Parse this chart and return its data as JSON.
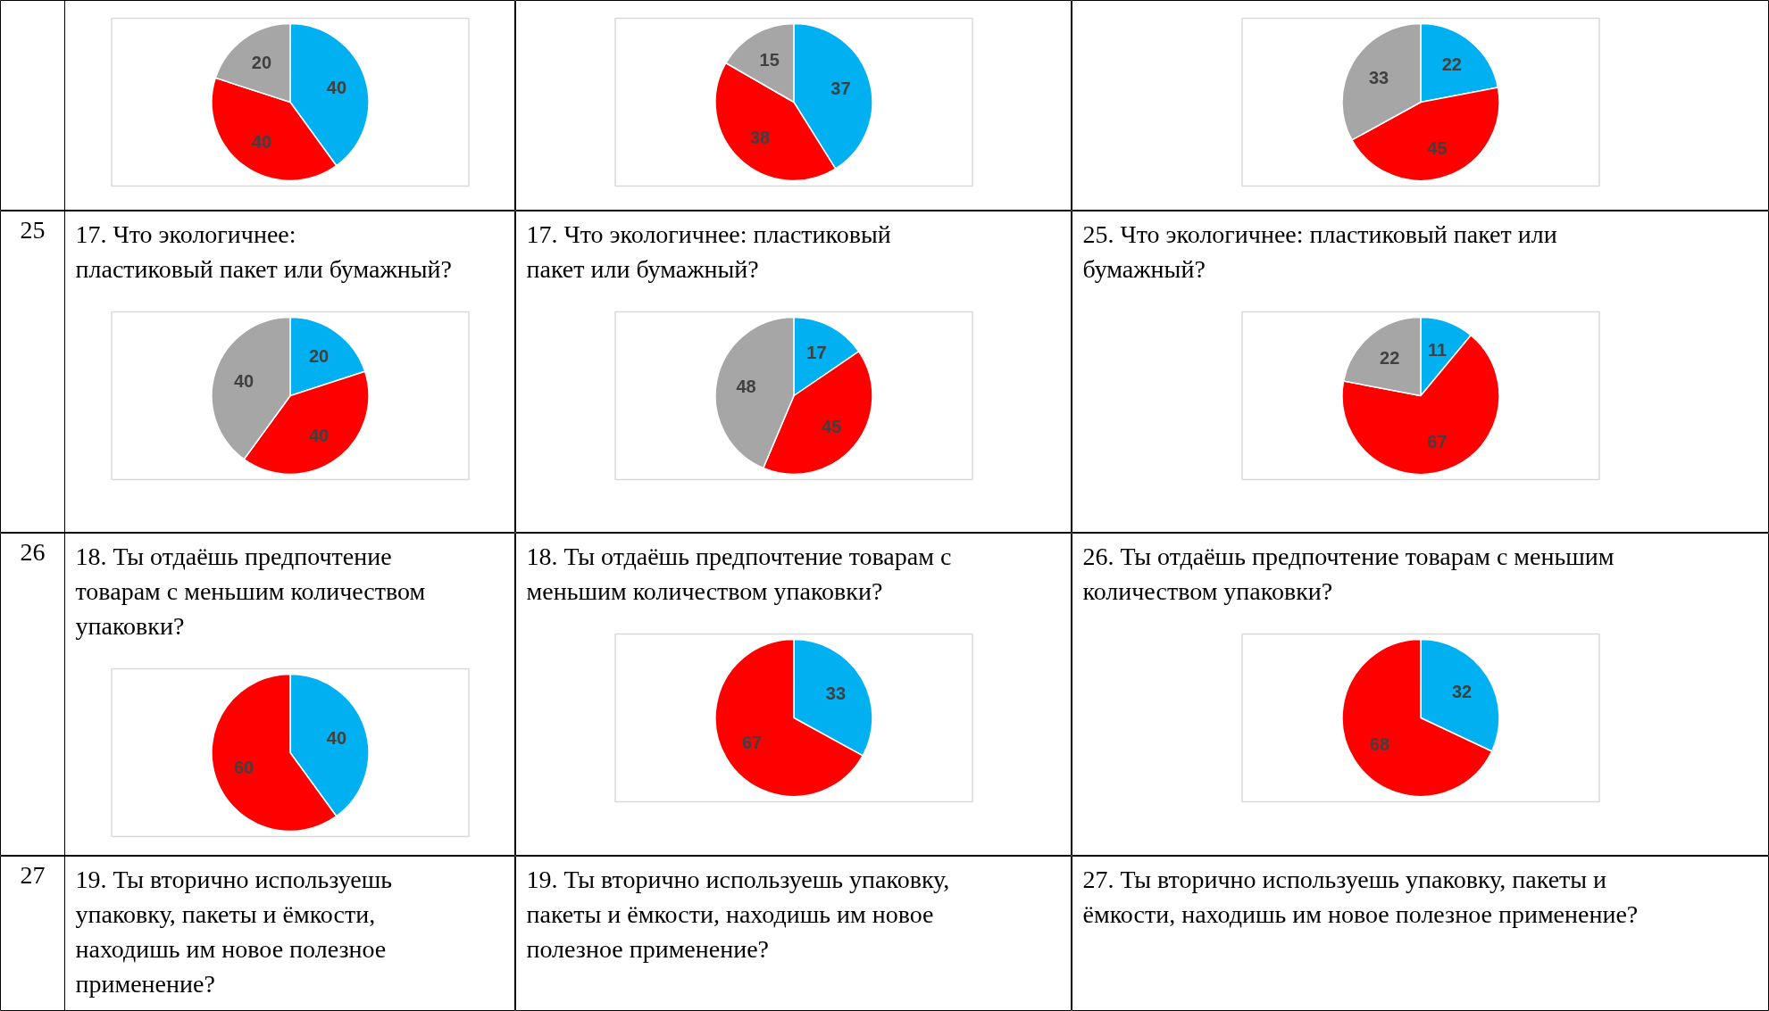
{
  "chart_data": [
    {
      "type": "pie",
      "categories": [
        null,
        null,
        null
      ],
      "values": [
        40,
        40,
        20
      ],
      "colors": [
        "#00b0f0",
        "#ff0000",
        "#a6a6a6"
      ],
      "data_labels": true
    },
    {
      "type": "pie",
      "categories": [
        null,
        null,
        null
      ],
      "values": [
        37,
        38,
        15
      ],
      "colors": [
        "#00b0f0",
        "#ff0000",
        "#a6a6a6"
      ],
      "data_labels": true
    },
    {
      "type": "pie",
      "categories": [
        null,
        null,
        null
      ],
      "values": [
        22,
        45,
        33
      ],
      "colors": [
        "#00b0f0",
        "#ff0000",
        "#a6a6a6"
      ],
      "data_labels": true
    },
    {
      "type": "pie",
      "title": "17.    Что экологичнее: пластиковый пакет или бумажный?",
      "annotations": [
        "25"
      ],
      "categories": [
        null,
        null,
        null
      ],
      "values": [
        20,
        40,
        40
      ],
      "colors": [
        "#00b0f0",
        "#ff0000",
        "#a6a6a6"
      ],
      "data_labels": true
    },
    {
      "type": "pie",
      "title": "17.    Что экологичнее: пластиковый пакет или бумажный?",
      "categories": [
        null,
        null,
        null
      ],
      "values": [
        17,
        45,
        48
      ],
      "colors": [
        "#00b0f0",
        "#ff0000",
        "#a6a6a6"
      ],
      "data_labels": true
    },
    {
      "type": "pie",
      "title": "25.    Что экологичнее: пластиковый пакет или бумажный?",
      "categories": [
        null,
        null,
        null
      ],
      "values": [
        11,
        67,
        22
      ],
      "colors": [
        "#00b0f0",
        "#ff0000",
        "#a6a6a6"
      ],
      "data_labels": true
    },
    {
      "type": "pie",
      "title": "18.    Ты отдаёшь предпочтение товарам с меньшим количеством упаковки?",
      "annotations": [
        "26"
      ],
      "categories": [
        null,
        null
      ],
      "values": [
        40,
        60
      ],
      "colors": [
        "#00b0f0",
        "#ff0000"
      ],
      "data_labels": true
    },
    {
      "type": "pie",
      "title": "18.    Ты отдаёшь предпочтение товарам с меньшим количеством упаковки?",
      "categories": [
        null,
        null
      ],
      "values": [
        33,
        67
      ],
      "colors": [
        "#00b0f0",
        "#ff0000"
      ],
      "data_labels": true
    },
    {
      "type": "pie",
      "title": "26.    Ты отдаёшь предпочтение товарам с меньшим количеством упаковки?",
      "categories": [
        null,
        null
      ],
      "values": [
        32,
        68
      ],
      "colors": [
        "#00b0f0",
        "#ff0000"
      ],
      "data_labels": true
    },
    {
      "type": "other",
      "title": "19.    Ты вторично используешь упаковку, пакеты и ёмкости, находишь им новое полезное применение?",
      "annotations": [
        "27"
      ]
    },
    {
      "type": "other",
      "title": "19.    Ты вторично используешь упаковку, пакеты и ёмкости, находишь им новое полезное применение?"
    },
    {
      "type": "other",
      "title": "27.    Ты вторично используешь упаковку, пакеты и ёмкости, находишь им новое полезное применение?"
    }
  ]
}
